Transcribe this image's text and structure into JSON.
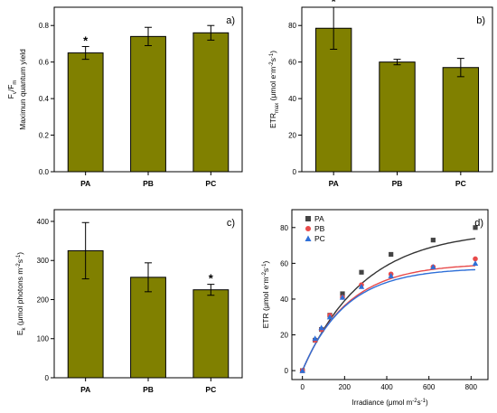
{
  "chart_data": [
    {
      "panel": "a)",
      "type": "bar",
      "categories": [
        "PA",
        "PB",
        "PC"
      ],
      "values": [
        0.65,
        0.74,
        0.76
      ],
      "errors": [
        0.035,
        0.05,
        0.04
      ],
      "significance": [
        "*",
        "",
        ""
      ],
      "ylabel_main": "F",
      "ylabel_sub1": "v",
      "ylabel_mid": "/F",
      "ylabel_sub2": "m",
      "ylabel2": "Maximun quantum yield",
      "ylim": [
        0,
        0.9
      ],
      "yticks": [
        0.0,
        0.2,
        0.4,
        0.6,
        0.8
      ],
      "ytick_labels": [
        "0.0",
        "0.2",
        "0.4",
        "0.6",
        "0.8"
      ],
      "bar_color": "#808000"
    },
    {
      "panel": "b)",
      "type": "bar",
      "categories": [
        "PA",
        "PB",
        "PC"
      ],
      "values": [
        78.5,
        60,
        57
      ],
      "errors": [
        11.5,
        1.5,
        5
      ],
      "significance": [
        "*",
        "",
        ""
      ],
      "ylabel_main": "ETR",
      "ylabel_sub1": "max",
      "ylabel_mid": " (μmol e",
      "ylabel_sup1": "-",
      "ylabel_tail1": "m",
      "ylabel_sup2": "-2",
      "ylabel_tail2": "s",
      "ylabel_sup3": "-1",
      "ylabel_end": ")",
      "ylim": [
        0,
        90
      ],
      "yticks": [
        0,
        20,
        40,
        60,
        80
      ],
      "ytick_labels": [
        "0",
        "20",
        "40",
        "60",
        "80"
      ],
      "bar_color": "#808000"
    },
    {
      "panel": "c)",
      "type": "bar",
      "categories": [
        "PA",
        "PB",
        "PC"
      ],
      "values": [
        325,
        257,
        225
      ],
      "errors": [
        72,
        37,
        14
      ],
      "significance": [
        "",
        "",
        "*"
      ],
      "ylabel_main": "E",
      "ylabel_sub1": "k",
      "ylabel_mid": "  (μmol photons m",
      "ylabel_sup1": "-2",
      "ylabel_tail1": "s",
      "ylabel_sup2": "-1",
      "ylabel_end": ")",
      "ylim": [
        0,
        430
      ],
      "yticks": [
        0,
        100,
        200,
        300,
        400
      ],
      "ytick_labels": [
        "0",
        "100",
        "200",
        "300",
        "400"
      ],
      "bar_color": "#808000"
    },
    {
      "panel": "d)",
      "type": "scatter",
      "xlabel_main": "Irradiance (μmol m",
      "xlabel_sup1": "-2",
      "xlabel_tail": "s",
      "xlabel_sup2": "-1",
      "xlabel_end": ")",
      "ylabel_main": "ETR (μmol e",
      "ylabel_sup1": "-",
      "ylabel_tail1": "m",
      "ylabel_sup2": "-2",
      "ylabel_tail2": "s",
      "ylabel_sup3": "-1",
      "ylabel_end": ")",
      "xlim": [
        -50,
        880
      ],
      "ylim": [
        -5,
        90
      ],
      "xticks": [
        0,
        200,
        400,
        600,
        800
      ],
      "xtick_labels": [
        "0",
        "200",
        "400",
        "600",
        "800"
      ],
      "yticks": [
        0,
        20,
        40,
        60,
        80
      ],
      "ytick_labels": [
        "0",
        "20",
        "40",
        "60",
        "80"
      ],
      "x": [
        0,
        60,
        90,
        130,
        190,
        280,
        420,
        620,
        820
      ],
      "series": [
        {
          "name": "PA",
          "color": "#444444",
          "marker": "square",
          "fit_color": "#333333",
          "fit_max": 78.5,
          "fit_ek": 290,
          "values": [
            0,
            17,
            23,
            31,
            43,
            55,
            65,
            73,
            80
          ]
        },
        {
          "name": "PB",
          "color": "#e84a4a",
          "marker": "circle",
          "fit_color": "#e84a4a",
          "fit_max": 60,
          "fit_ek": 215,
          "values": [
            0,
            17,
            23,
            31,
            41,
            48,
            54,
            58,
            62.5
          ]
        },
        {
          "name": "PC",
          "color": "#2e6fd8",
          "marker": "triangle",
          "fit_color": "#2e6fd8",
          "fit_max": 57.5,
          "fit_ek": 205,
          "values": [
            0,
            18,
            24,
            30,
            41,
            47,
            53,
            58,
            60
          ]
        }
      ],
      "legend_position": "top-left"
    }
  ]
}
